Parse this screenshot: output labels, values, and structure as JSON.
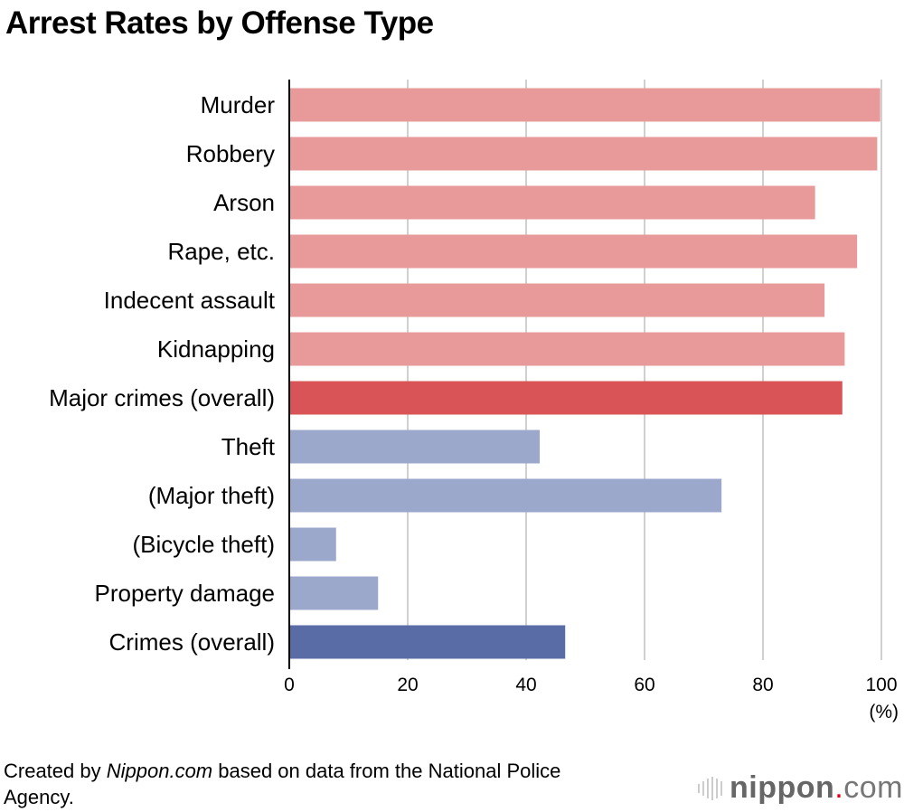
{
  "chart_data": {
    "type": "bar",
    "orientation": "horizontal",
    "title": "Arrest Rates by Offense Type",
    "categories": [
      "Murder",
      "Robbery",
      "Arson",
      "Rape, etc.",
      "Indecent assault",
      "Kidnapping",
      "Major crimes (overall)",
      "Theft",
      "(Major theft)",
      "(Bicycle theft)",
      "Property damage",
      "Crimes (overall)"
    ],
    "values": [
      99.8,
      99.3,
      88.8,
      95.9,
      90.4,
      93.8,
      93.4,
      42.3,
      73.0,
      7.9,
      15.0,
      46.6
    ],
    "colors": [
      "#e89a9a",
      "#e89a9a",
      "#e89a9a",
      "#e89a9a",
      "#e89a9a",
      "#e89a9a",
      "#d85456",
      "#9ca7cc",
      "#9ca7cc",
      "#9ca7cc",
      "#9ca7cc",
      "#596ca6"
    ],
    "xlim": [
      0,
      100
    ],
    "xticks": [
      0,
      20,
      40,
      60,
      80,
      100
    ],
    "xunit": "(%)",
    "grid": true
  },
  "source": {
    "prefix": "Created by ",
    "brand": "Nippon.com",
    "suffix": " based on data from the National Police Agency."
  },
  "logo": {
    "text": "nippon.com",
    "name": "nippon",
    "dot": ".",
    "tld": "com",
    "accent": "#e60012"
  }
}
